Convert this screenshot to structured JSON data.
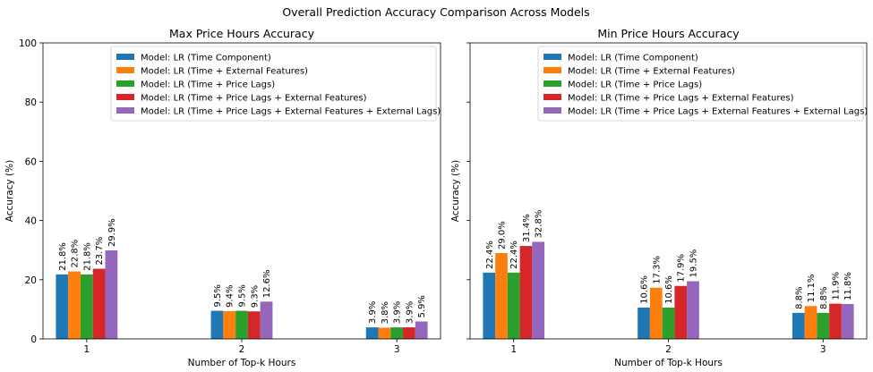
{
  "figure_title": "Overall Prediction Accuracy Comparison Across Models",
  "colors": [
    "#1f77b4",
    "#ff7f0e",
    "#2ca02c",
    "#d62728",
    "#9467bd"
  ],
  "chart_data": [
    {
      "type": "bar",
      "title": "Max Price Hours Accuracy",
      "xlabel": "Number of Top-k Hours",
      "ylabel": "Accuracy (%)",
      "ylim": [
        0,
        100
      ],
      "yticks": [
        0,
        20,
        40,
        60,
        80,
        100
      ],
      "categories": [
        "1",
        "2",
        "3"
      ],
      "legend_position": "top-center",
      "grid": false,
      "series": [
        {
          "name": "Model: LR (Time Component)",
          "values": [
            21.8,
            9.5,
            3.9
          ],
          "labels": [
            "21.8%",
            "9.5%",
            "3.9%"
          ]
        },
        {
          "name": "Model: LR (Time + External Features)",
          "values": [
            22.8,
            9.4,
            3.8
          ],
          "labels": [
            "22.8%",
            "9.4%",
            "3.8%"
          ]
        },
        {
          "name": "Model: LR (Time + Price Lags)",
          "values": [
            21.8,
            9.5,
            3.9
          ],
          "labels": [
            "21.8%",
            "9.5%",
            "3.9%"
          ]
        },
        {
          "name": "Model: LR (Time + Price Lags + External Features)",
          "values": [
            23.7,
            9.3,
            3.9
          ],
          "labels": [
            "23.7%",
            "9.3%",
            "3.9%"
          ]
        },
        {
          "name": "Model: LR (Time + Price Lags + External Features + External Lags)",
          "values": [
            29.9,
            12.6,
            5.9
          ],
          "labels": [
            "29.9%",
            "12.6%",
            "5.9%"
          ]
        }
      ]
    },
    {
      "type": "bar",
      "title": "Min Price Hours Accuracy",
      "xlabel": "Number of Top-k Hours",
      "ylabel": "Accuracy (%)",
      "ylim": [
        0,
        100
      ],
      "yticks": [
        0,
        20,
        40,
        60,
        80,
        100
      ],
      "categories": [
        "1",
        "2",
        "3"
      ],
      "legend_position": "top-center",
      "grid": false,
      "series": [
        {
          "name": "Model: LR (Time Component)",
          "values": [
            22.4,
            10.6,
            8.8
          ],
          "labels": [
            "22.4%",
            "10.6%",
            "8.8%"
          ]
        },
        {
          "name": "Model: LR (Time + External Features)",
          "values": [
            29.0,
            17.3,
            11.1
          ],
          "labels": [
            "29.0%",
            "17.3%",
            "11.1%"
          ]
        },
        {
          "name": "Model: LR (Time + Price Lags)",
          "values": [
            22.4,
            10.6,
            8.8
          ],
          "labels": [
            "22.4%",
            "10.6%",
            "8.8%"
          ]
        },
        {
          "name": "Model: LR (Time + Price Lags + External Features)",
          "values": [
            31.4,
            17.9,
            11.9
          ],
          "labels": [
            "31.4%",
            "17.9%",
            "11.9%"
          ]
        },
        {
          "name": "Model: LR (Time + Price Lags + External Features + External Lags)",
          "values": [
            32.8,
            19.5,
            11.8
          ],
          "labels": [
            "32.8%",
            "19.5%",
            "11.8%"
          ]
        }
      ]
    }
  ]
}
